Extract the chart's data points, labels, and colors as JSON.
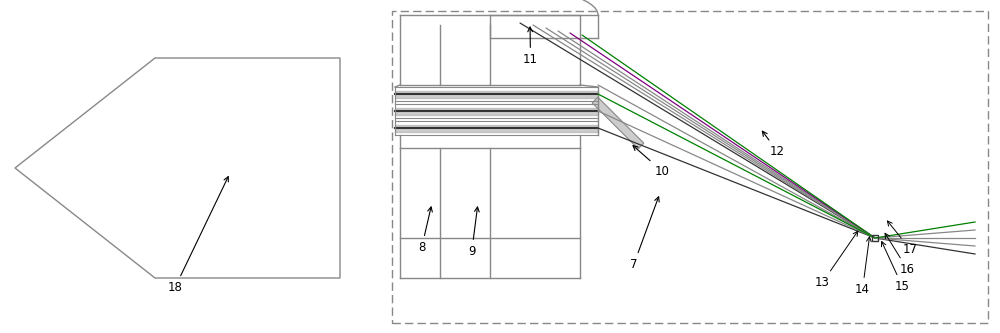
{
  "bg_color": "#ffffff",
  "line_color": "#888888",
  "dark_line": "#333333",
  "green_line": "#008000",
  "purple_line": "#800080",
  "fig_width": 10.0,
  "fig_height": 3.33,
  "dpi": 100
}
